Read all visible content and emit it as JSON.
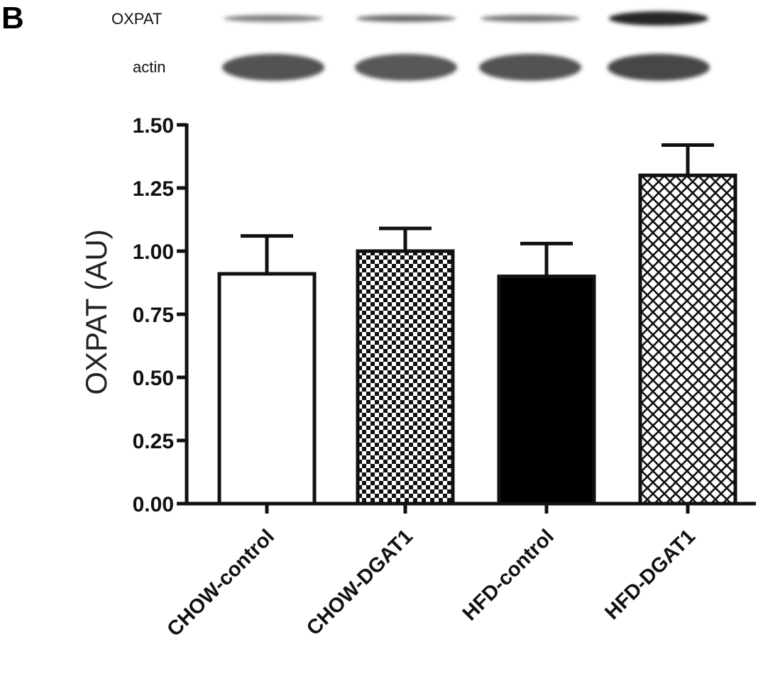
{
  "panel_letter": "B",
  "blot": {
    "rows": [
      {
        "label": "OXPAT",
        "intensity": [
          0.55,
          0.65,
          0.6,
          0.95
        ]
      },
      {
        "label": "actin",
        "intensity": [
          0.75,
          0.72,
          0.75,
          0.8
        ]
      }
    ]
  },
  "chart_data": {
    "type": "bar",
    "title": "",
    "xlabel": "",
    "ylabel": "OXPAT (AU)",
    "ylim": [
      0,
      1.5
    ],
    "yticks": [
      "0.00",
      "0.25",
      "0.50",
      "0.75",
      "1.00",
      "1.25",
      "1.50"
    ],
    "categories": [
      "CHOW-control",
      "CHOW-DGAT1",
      "HFD-control",
      "HFD-DGAT1"
    ],
    "values": [
      0.91,
      1.0,
      0.9,
      1.3
    ],
    "errors": [
      0.15,
      0.09,
      0.13,
      0.12
    ],
    "fills": [
      "white",
      "checker",
      "black",
      "crosshatch"
    ],
    "grid": false,
    "legend": "none"
  }
}
